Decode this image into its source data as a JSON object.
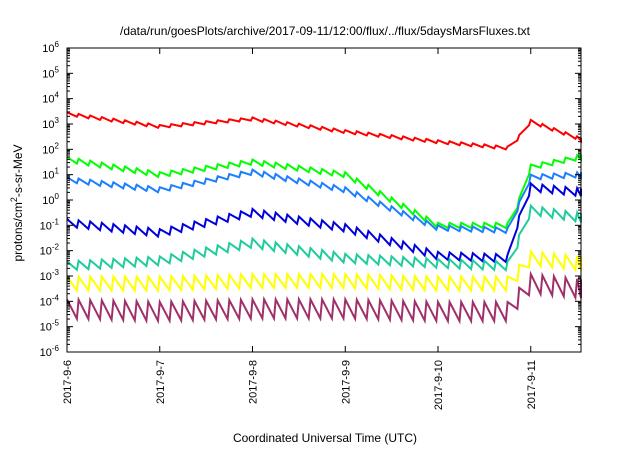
{
  "chart_data": {
    "type": "line",
    "title": "/data/run/goesPlots/archive/2017-09-11/12:00/flux/../flux/5daysMarsFluxes.txt",
    "xlabel": "Coordinated Universal Time (UTC)",
    "ylabel": {
      "prefix": "protons/cm",
      "superscript": "2",
      "suffix": "-s-sr-MeV"
    },
    "y_scale": "log",
    "ylim": [
      1e-06,
      1000000.0
    ],
    "xlim": [
      "2017-09-06T00:00",
      "2017-09-11T13:00"
    ],
    "grid": false,
    "x_tick_labels": [
      "2017-9-6",
      "2017-9-7",
      "2017-9-8",
      "2017-9-9",
      "2017-9-10",
      "2017-9-11"
    ],
    "y_tick_labels": [
      {
        "base": "10",
        "exp": "-6"
      },
      {
        "base": "10",
        "exp": "-5"
      },
      {
        "base": "10",
        "exp": "-4"
      },
      {
        "base": "10",
        "exp": "-3"
      },
      {
        "base": "10",
        "exp": "-2"
      },
      {
        "base": "10",
        "exp": "-1"
      },
      {
        "base": "10",
        "exp": "0"
      },
      {
        "base": "10",
        "exp": "1"
      },
      {
        "base": "10",
        "exp": "2"
      },
      {
        "base": "10",
        "exp": "3"
      },
      {
        "base": "10",
        "exp": "4"
      },
      {
        "base": "10",
        "exp": "5"
      },
      {
        "base": "10",
        "exp": "6"
      }
    ],
    "x_anchor_times": [
      "2017-09-06T00:00",
      "2017-09-07T00:00",
      "2017-09-08T00:00",
      "2017-09-09T00:00",
      "2017-09-10T00:00",
      "2017-09-10T18:00",
      "2017-09-10T19:00",
      "2017-09-11T00:00",
      "2017-09-11T13:00"
    ],
    "sawtooth_period_hours": 3,
    "series": [
      {
        "color": "#ff0000",
        "log10_anchors": [
          3.4,
          2.9,
          3.2,
          2.7,
          2.3,
          2.05,
          2.1,
          3.1,
          2.4
        ],
        "sawtooth_amplitude_decades": 0.12
      },
      {
        "color": "#00ff00",
        "log10_anchors": [
          1.6,
          1.0,
          1.5,
          1.0,
          -1.0,
          -1.0,
          -0.9,
          1.3,
          1.7
        ],
        "sawtooth_amplitude_decades": 0.2
      },
      {
        "color": "#1c7fff",
        "log10_anchors": [
          0.8,
          0.4,
          1.1,
          0.4,
          -1.1,
          -1.2,
          -0.9,
          0.9,
          1.0
        ],
        "sawtooth_amplitude_decades": 0.2
      },
      {
        "color": "#0000dd",
        "log10_anchors": [
          -0.9,
          -1.3,
          -0.5,
          -1.1,
          -2.2,
          -2.3,
          -1.6,
          0.5,
          0.3
        ],
        "sawtooth_amplitude_decades": 0.3
      },
      {
        "color": "#1fcc9c",
        "log10_anchors": [
          -2.6,
          -2.4,
          -1.7,
          -2.3,
          -2.5,
          -2.6,
          -2.3,
          -0.4,
          -0.7
        ],
        "sawtooth_amplitude_decades": 0.35
      },
      {
        "color": "#ffff00",
        "log10_anchors": [
          -3.3,
          -3.3,
          -3.2,
          -3.2,
          -3.3,
          -3.3,
          -3.2,
          -2.3,
          -2.5
        ],
        "sawtooth_amplitude_decades": 0.55
      },
      {
        "color": "#a0306a",
        "log10_anchors": [
          -4.3,
          -4.4,
          -4.3,
          -4.3,
          -4.4,
          -4.4,
          -4.2,
          -3.3,
          -3.5
        ],
        "sawtooth_amplitude_decades": 0.75
      }
    ]
  }
}
